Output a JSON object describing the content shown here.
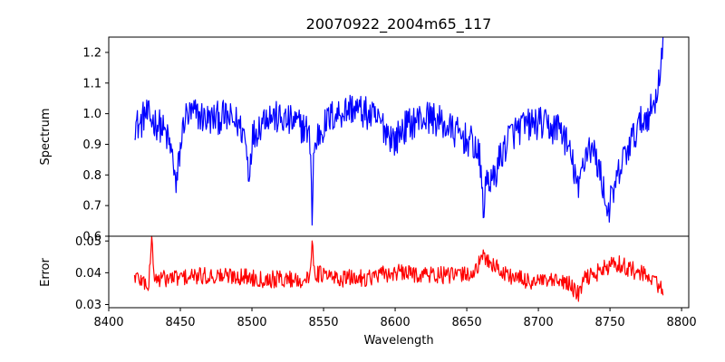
{
  "chart_data": {
    "type": "line",
    "title": "20070922_2004m65_117",
    "xlabel": "Wavelength",
    "xlim": [
      8400,
      8805
    ],
    "xticks": [
      8400,
      8450,
      8500,
      8550,
      8600,
      8650,
      8700,
      8750,
      8800
    ],
    "xtick_labels": [
      "8400",
      "8450",
      "8500",
      "8550",
      "8600",
      "8650",
      "8700",
      "8750",
      "8800"
    ],
    "x_range": [
      8418,
      8787
    ],
    "panels": [
      {
        "name": "spectrum",
        "ylabel": "Spectrum",
        "ylim": [
          0.6,
          1.25
        ],
        "yticks": [
          0.6,
          0.7,
          0.8,
          0.9,
          1.0,
          1.1,
          1.2
        ],
        "ytick_labels": [
          "0.6",
          "0.7",
          "0.8",
          "0.9",
          "1.0",
          "1.1",
          "1.2"
        ],
        "color": "#0000ff",
        "noise_amp": 0.055,
        "anchors": [
          [
            8418,
            0.97
          ],
          [
            8422,
            0.96
          ],
          [
            8425,
            1.0
          ],
          [
            8430,
            0.98
          ],
          [
            8436,
            0.96
          ],
          [
            8440,
            0.93
          ],
          [
            8443,
            0.89
          ],
          [
            8446,
            0.82
          ],
          [
            8447,
            0.74
          ],
          [
            8449,
            0.85
          ],
          [
            8453,
            0.99
          ],
          [
            8460,
            1.0
          ],
          [
            8470,
            0.98
          ],
          [
            8480,
            0.99
          ],
          [
            8490,
            0.97
          ],
          [
            8495,
            0.93
          ],
          [
            8498,
            0.8
          ],
          [
            8500,
            0.92
          ],
          [
            8510,
            1.0
          ],
          [
            8520,
            0.98
          ],
          [
            8530,
            0.97
          ],
          [
            8538,
            0.95
          ],
          [
            8541,
            0.9
          ],
          [
            8542,
            0.64
          ],
          [
            8543,
            0.86
          ],
          [
            8546,
            0.93
          ],
          [
            8555,
            0.99
          ],
          [
            8570,
            1.02
          ],
          [
            8580,
            1.0
          ],
          [
            8590,
            0.97
          ],
          [
            8600,
            0.91
          ],
          [
            8605,
            0.95
          ],
          [
            8615,
            0.98
          ],
          [
            8625,
            0.99
          ],
          [
            8635,
            0.96
          ],
          [
            8645,
            0.93
          ],
          [
            8655,
            0.9
          ],
          [
            8659,
            0.85
          ],
          [
            8662,
            0.68
          ],
          [
            8664,
            0.8
          ],
          [
            8668,
            0.77
          ],
          [
            8672,
            0.84
          ],
          [
            8680,
            0.93
          ],
          [
            8690,
            0.96
          ],
          [
            8700,
            0.97
          ],
          [
            8710,
            0.95
          ],
          [
            8715,
            0.96
          ],
          [
            8720,
            0.9
          ],
          [
            8726,
            0.8
          ],
          [
            8728,
            0.73
          ],
          [
            8730,
            0.82
          ],
          [
            8735,
            0.9
          ],
          [
            8740,
            0.86
          ],
          [
            8745,
            0.77
          ],
          [
            8748,
            0.68
          ],
          [
            8752,
            0.73
          ],
          [
            8756,
            0.8
          ],
          [
            8760,
            0.86
          ],
          [
            8765,
            0.91
          ],
          [
            8770,
            0.96
          ],
          [
            8775,
            0.99
          ],
          [
            8780,
            1.02
          ],
          [
            8784,
            1.1
          ],
          [
            8786,
            1.2
          ],
          [
            8787,
            1.21
          ]
        ]
      },
      {
        "name": "error",
        "ylabel": "Error",
        "ylim": [
          0.029,
          0.0515
        ],
        "yticks": [
          0.03,
          0.04,
          0.05
        ],
        "ytick_labels": [
          "0.03",
          "0.04",
          "0.05"
        ],
        "color": "#ff0000",
        "noise_amp": 0.0028,
        "anchors": [
          [
            8418,
            0.039
          ],
          [
            8425,
            0.037
          ],
          [
            8428,
            0.036
          ],
          [
            8430,
            0.05
          ],
          [
            8432,
            0.038
          ],
          [
            8450,
            0.0385
          ],
          [
            8470,
            0.039
          ],
          [
            8490,
            0.039
          ],
          [
            8510,
            0.038
          ],
          [
            8530,
            0.038
          ],
          [
            8540,
            0.0375
          ],
          [
            8542,
            0.049
          ],
          [
            8544,
            0.04
          ],
          [
            8560,
            0.038
          ],
          [
            8580,
            0.0385
          ],
          [
            8600,
            0.04
          ],
          [
            8620,
            0.0395
          ],
          [
            8640,
            0.039
          ],
          [
            8655,
            0.04
          ],
          [
            8662,
            0.045
          ],
          [
            8670,
            0.042
          ],
          [
            8675,
            0.04
          ],
          [
            8690,
            0.0375
          ],
          [
            8710,
            0.037
          ],
          [
            8720,
            0.037
          ],
          [
            8728,
            0.033
          ],
          [
            8732,
            0.038
          ],
          [
            8745,
            0.041
          ],
          [
            8755,
            0.043
          ],
          [
            8765,
            0.041
          ],
          [
            8775,
            0.039
          ],
          [
            8782,
            0.037
          ],
          [
            8785,
            0.036
          ],
          [
            8787,
            0.033
          ]
        ],
        "spikes": [
          [
            8430,
            0.0515
          ],
          [
            8542,
            0.05
          ],
          [
            8728,
            0.031
          ]
        ]
      }
    ]
  }
}
